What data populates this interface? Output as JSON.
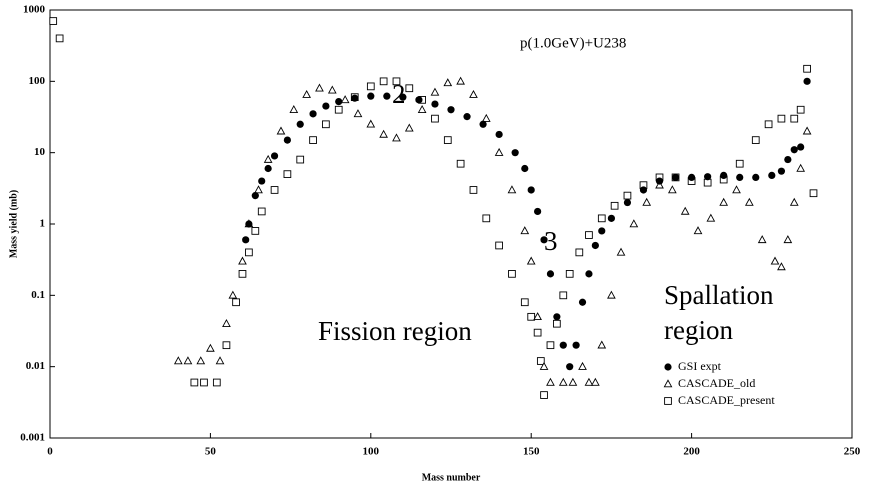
{
  "chart_data": {
    "type": "scatter",
    "x_label": "Mass number",
    "y_label": "Mass yield (mb)",
    "xlim": [
      0,
      250
    ],
    "xticks": [
      0,
      50,
      100,
      150,
      200,
      250
    ],
    "ylim": [
      0.001,
      1000
    ],
    "yticks": [
      1000,
      100,
      10,
      1,
      0.1,
      0.01,
      0.001
    ],
    "log_y": true,
    "legend": "lower right",
    "annotations": [
      "p(1.0GeV)+U238",
      "Fission region",
      "Spallation",
      "region",
      "2",
      "3"
    ],
    "series": [
      {
        "name": "GSI expt",
        "color": "#000000",
        "marker": "circle",
        "x": [
          61,
          62,
          64,
          66,
          68,
          70,
          74,
          78,
          82,
          86,
          90,
          95,
          100,
          105,
          110,
          115,
          120,
          125,
          130,
          135,
          140,
          145,
          148,
          150,
          152,
          154,
          156,
          158,
          160,
          162,
          164,
          166,
          168,
          170,
          172,
          175,
          180,
          185,
          190,
          195,
          200,
          205,
          210,
          215,
          220,
          225,
          228,
          230,
          232,
          234,
          236
        ],
        "values": [
          0.6,
          1,
          2.5,
          4,
          6,
          9,
          15,
          25,
          35,
          45,
          52,
          58,
          62,
          62,
          60,
          55,
          48,
          40,
          32,
          25,
          18,
          10,
          6,
          3,
          1.5,
          0.6,
          0.2,
          0.05,
          0.02,
          0.01,
          0.02,
          0.08,
          0.2,
          0.5,
          0.8,
          1.2,
          2,
          3,
          4,
          4.5,
          4.5,
          4.6,
          4.8,
          4.5,
          4.5,
          4.8,
          5.5,
          8,
          11,
          12,
          100
        ]
      },
      {
        "name": "CASCADE_old",
        "color": "#000000",
        "marker": "triangle",
        "x": [
          40,
          43,
          47,
          50,
          53,
          55,
          57,
          60,
          62,
          65,
          68,
          72,
          76,
          80,
          84,
          88,
          92,
          96,
          100,
          104,
          108,
          112,
          116,
          120,
          124,
          128,
          132,
          136,
          140,
          144,
          148,
          150,
          152,
          154,
          156,
          160,
          163,
          166,
          168,
          170,
          172,
          175,
          178,
          182,
          186,
          190,
          194,
          198,
          202,
          206,
          210,
          214,
          218,
          222,
          226,
          228,
          230,
          232,
          234,
          236
        ],
        "values": [
          0.012,
          0.012,
          0.012,
          0.018,
          0.012,
          0.04,
          0.1,
          0.3,
          1,
          3,
          8,
          20,
          40,
          65,
          80,
          75,
          55,
          35,
          25,
          18,
          16,
          22,
          40,
          70,
          95,
          100,
          65,
          30,
          10,
          3,
          0.8,
          0.3,
          0.05,
          0.01,
          0.006,
          0.006,
          0.006,
          0.01,
          0.006,
          0.006,
          0.02,
          0.1,
          0.4,
          1,
          2,
          3.5,
          3,
          1.5,
          0.8,
          1.2,
          2,
          3,
          2,
          0.6,
          0.3,
          0.25,
          0.6,
          2,
          6,
          20
        ]
      },
      {
        "name": "CASCADE_present",
        "color": "#000000",
        "marker": "square",
        "x": [
          1,
          3,
          45,
          48,
          52,
          55,
          58,
          60,
          62,
          64,
          66,
          70,
          74,
          78,
          82,
          86,
          90,
          95,
          100,
          104,
          108,
          112,
          116,
          120,
          124,
          128,
          132,
          136,
          140,
          144,
          148,
          150,
          152,
          153,
          154,
          156,
          158,
          160,
          162,
          165,
          168,
          172,
          176,
          180,
          185,
          190,
          195,
          200,
          205,
          210,
          215,
          220,
          224,
          228,
          232,
          234,
          236,
          238
        ],
        "values": [
          700,
          400,
          0.006,
          0.006,
          0.006,
          0.02,
          0.08,
          0.2,
          0.4,
          0.8,
          1.5,
          3,
          5,
          8,
          15,
          25,
          40,
          60,
          85,
          100,
          100,
          80,
          55,
          30,
          15,
          7,
          3,
          1.2,
          0.5,
          0.2,
          0.08,
          0.05,
          0.03,
          0.012,
          0.004,
          0.02,
          0.04,
          0.1,
          0.2,
          0.4,
          0.7,
          1.2,
          1.8,
          2.5,
          3.5,
          4.5,
          4.5,
          4,
          3.8,
          4.2,
          7,
          15,
          25,
          30,
          30,
          40,
          150,
          2.7
        ]
      }
    ]
  }
}
